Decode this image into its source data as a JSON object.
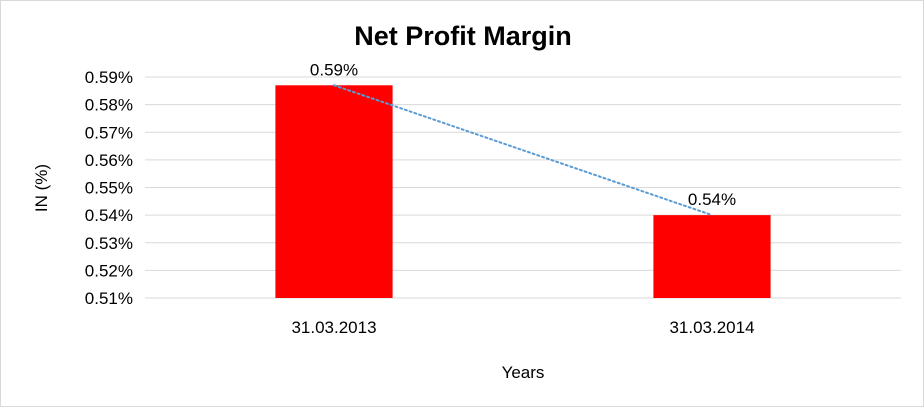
{
  "chart_data": {
    "type": "bar",
    "title": "Net Profit Margin",
    "xlabel": "Years",
    "ylabel": "IN (%)",
    "categories": [
      "31.03.2013",
      "31.03.2014"
    ],
    "values": [
      0.587,
      0.54
    ],
    "data_labels": [
      "0.59%",
      "0.54%"
    ],
    "ylim": [
      0.51,
      0.59
    ],
    "yticks": [
      0.51,
      0.52,
      0.53,
      0.54,
      0.55,
      0.56,
      0.57,
      0.58,
      0.59
    ],
    "ytick_labels": [
      "0.51%",
      "0.52%",
      "0.53%",
      "0.54%",
      "0.55%",
      "0.56%",
      "0.57%",
      "0.58%",
      "0.59%"
    ],
    "grid": true,
    "legend": "none",
    "trendline": "linear",
    "colors": {
      "bar": "#ff0000",
      "trendline": "#5b9bd5",
      "grid": "#d9d9d9"
    }
  }
}
